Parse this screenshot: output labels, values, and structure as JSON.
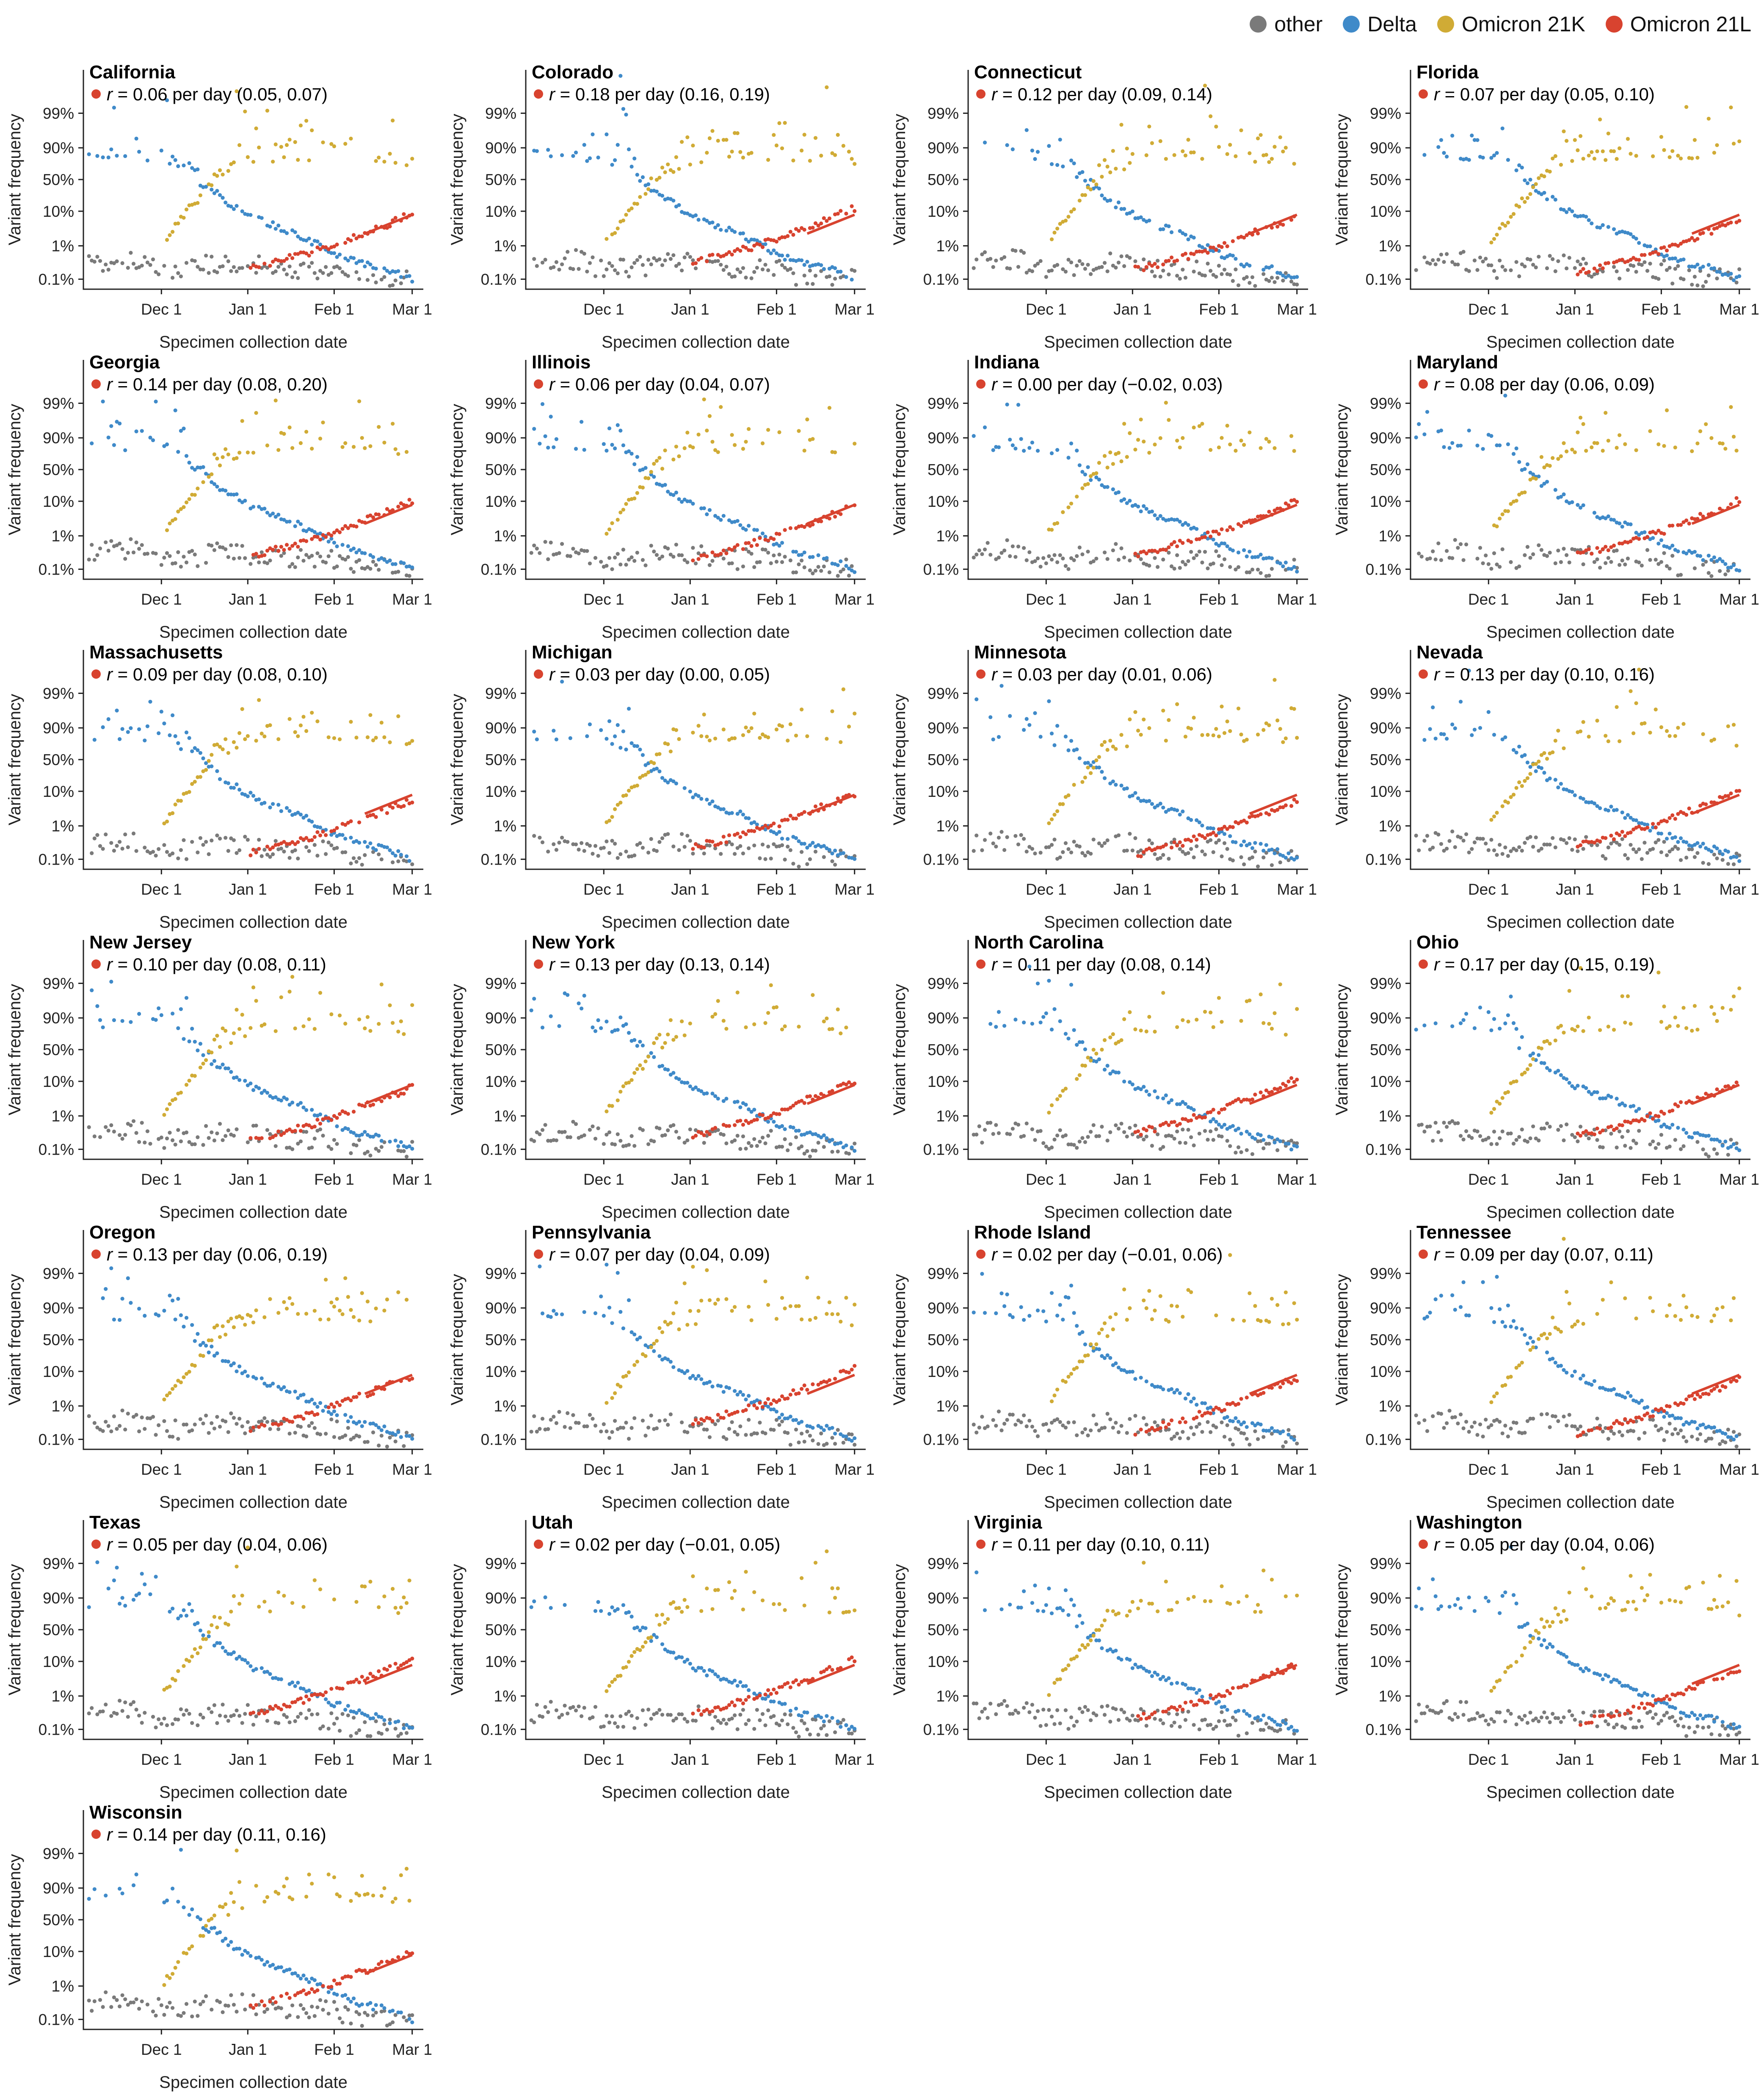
{
  "legend": [
    {
      "name": "other",
      "color": "#7a7a7a"
    },
    {
      "name": "Delta",
      "color": "#3f8ac9"
    },
    {
      "name": "Omicron 21K",
      "color": "#d0ab35"
    },
    {
      "name": "Omicron 21L",
      "color": "#d8432f"
    }
  ],
  "chart_data": {
    "type": "scatter",
    "layout": "small-multiples",
    "columns": 4,
    "xlabel": "Specimen collection date",
    "ylabel": "Variant frequency",
    "yscale": "logit",
    "x_ticks": [
      "Dec 1",
      "Jan 1",
      "Feb 1",
      "Mar 1"
    ],
    "xlim": [
      "2021-11-03",
      "2022-03-05"
    ],
    "y_ticks": [
      "99%",
      "90%",
      "50%",
      "10%",
      "1%",
      "0.1%"
    ],
    "y_tick_values": [
      0.99,
      0.9,
      0.5,
      0.1,
      0.01,
      0.001
    ],
    "ylim": [
      0.0005,
      0.9995
    ],
    "series_names": [
      "other",
      "Delta",
      "Omicron 21K",
      "Omicron 21L"
    ],
    "series_colors": [
      "#7a7a7a",
      "#3f8ac9",
      "#d0ab35",
      "#d8432f"
    ],
    "growth_label": "per day",
    "panels": [
      {
        "state": "California",
        "r": "0.06",
        "ci": "(0.05, 0.07)"
      },
      {
        "state": "Colorado",
        "r": "0.18",
        "ci": "(0.16, 0.19)"
      },
      {
        "state": "Connecticut",
        "r": "0.12",
        "ci": "(0.09, 0.14)"
      },
      {
        "state": "Florida",
        "r": "0.07",
        "ci": "(0.05, 0.10)"
      },
      {
        "state": "Georgia",
        "r": "0.14",
        "ci": "(0.08, 0.20)"
      },
      {
        "state": "Illinois",
        "r": "0.06",
        "ci": "(0.04, 0.07)"
      },
      {
        "state": "Indiana",
        "r": "0.00",
        "ci": "(−0.02, 0.03)"
      },
      {
        "state": "Maryland",
        "r": "0.08",
        "ci": "(0.06, 0.09)"
      },
      {
        "state": "Massachusetts",
        "r": "0.09",
        "ci": "(0.08, 0.10)"
      },
      {
        "state": "Michigan",
        "r": "0.03",
        "ci": "(0.00, 0.05)"
      },
      {
        "state": "Minnesota",
        "r": "0.03",
        "ci": "(0.01, 0.06)"
      },
      {
        "state": "Nevada",
        "r": "0.13",
        "ci": "(0.10, 0.16)"
      },
      {
        "state": "New Jersey",
        "r": "0.10",
        "ci": "(0.08, 0.11)"
      },
      {
        "state": "New York",
        "r": "0.13",
        "ci": "(0.13, 0.14)"
      },
      {
        "state": "North Carolina",
        "r": "0.11",
        "ci": "(0.08, 0.14)"
      },
      {
        "state": "Ohio",
        "r": "0.17",
        "ci": "(0.15, 0.19)"
      },
      {
        "state": "Oregon",
        "r": "0.13",
        "ci": "(0.06, 0.19)"
      },
      {
        "state": "Pennsylvania",
        "r": "0.07",
        "ci": "(0.04, 0.09)"
      },
      {
        "state": "Rhode Island",
        "r": "0.02",
        "ci": "(−0.01, 0.06)"
      },
      {
        "state": "Tennessee",
        "r": "0.09",
        "ci": "(0.07, 0.11)"
      },
      {
        "state": "Texas",
        "r": "0.05",
        "ci": "(0.04, 0.06)"
      },
      {
        "state": "Utah",
        "r": "0.02",
        "ci": "(−0.01, 0.05)"
      },
      {
        "state": "Virginia",
        "r": "0.11",
        "ci": "(0.10, 0.11)"
      },
      {
        "state": "Washington",
        "r": "0.05",
        "ci": "(0.04, 0.06)"
      },
      {
        "state": "Wisconsin",
        "r": "0.14",
        "ci": "(0.11, 0.16)"
      }
    ],
    "series_trajectories": {
      "x": [
        "2021-11-05",
        "2021-11-20",
        "2021-12-01",
        "2021-12-10",
        "2021-12-20",
        "2022-01-01",
        "2022-01-10",
        "2022-01-20",
        "2022-02-01",
        "2022-02-10",
        "2022-02-20",
        "2022-03-01"
      ],
      "other": [
        0.003,
        0.004,
        0.002,
        0.002,
        0.003,
        0.003,
        0.002,
        0.002,
        0.002,
        0.001,
        0.001,
        0.001
      ],
      "Delta": [
        0.995,
        0.99,
        0.97,
        0.8,
        0.3,
        0.08,
        0.04,
        0.02,
        0.006,
        0.003,
        0.002,
        0.001
      ],
      "Omicron 21K": [
        null,
        null,
        0.01,
        0.1,
        0.6,
        0.92,
        0.96,
        0.985,
        0.99,
        0.98,
        0.95,
        0.9
      ],
      "Omicron 21L": [
        null,
        null,
        null,
        null,
        null,
        0.002,
        0.003,
        0.005,
        0.01,
        0.02,
        0.04,
        0.08
      ]
    }
  }
}
